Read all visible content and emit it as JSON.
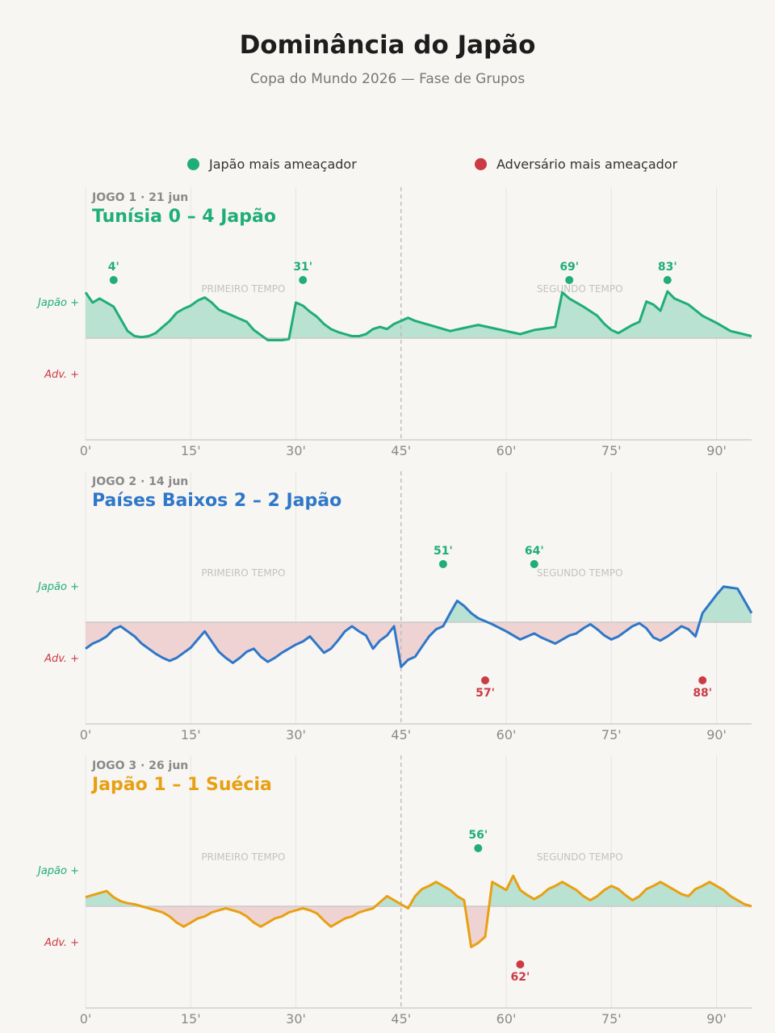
{
  "header": {
    "title": "Dominância do Japão",
    "subtitle": "Copa do Mundo 2026 — Fase de Grupos"
  },
  "legend": [
    {
      "label": "Japão mais ameaçador",
      "color": "#1fad78"
    },
    {
      "label": "Adversário mais ameaçador",
      "color": "#cc3b44"
    }
  ],
  "colors": {
    "japan": "#1fad78",
    "japan_fill": "#b9e2d2",
    "opponent": "#cc3b44",
    "opponent_fill": "#efd3d3",
    "grid": "#e7e5e0",
    "halftime_line": "#b8b8b8",
    "axis": "#cfcfcf",
    "tick": "#8a8a8a",
    "meta": "#8a8a8a",
    "period_label": "#c2c2c2"
  },
  "chart_data": [
    {
      "type": "area",
      "match_label": "JOGO 1",
      "date": "21 jun",
      "title": "Tunísia 0 – 4 Japão",
      "title_color": "#1fad78",
      "line_color": "#1fad78",
      "ylabel_top": "Japão +",
      "ylabel_bottom": "Adv. +",
      "period_labels": [
        "PRIMEIRO TEMPO",
        "SEGUNDO TEMPO"
      ],
      "xlim": [
        0,
        95
      ],
      "ylim": [
        -1,
        1
      ],
      "xticks": [
        0,
        15,
        30,
        45,
        60,
        75,
        90
      ],
      "xtick_labels": [
        "0'",
        "15'",
        "30'",
        "45'",
        "60'",
        "75'",
        "90'"
      ],
      "halftime": 45,
      "x": [
        0,
        1,
        2,
        3,
        4,
        5,
        6,
        7,
        8,
        9,
        10,
        11,
        12,
        13,
        14,
        15,
        16,
        17,
        18,
        19,
        20,
        21,
        22,
        23,
        24,
        25,
        26,
        27,
        28,
        29,
        30,
        31,
        32,
        33,
        34,
        35,
        36,
        37,
        38,
        39,
        40,
        41,
        42,
        43,
        44,
        45,
        46,
        47,
        48,
        49,
        50,
        52,
        54,
        56,
        58,
        60,
        62,
        64,
        65,
        67,
        68,
        69,
        71,
        73,
        74,
        75,
        76,
        78,
        79,
        80,
        81,
        82,
        83,
        84,
        86,
        88,
        90,
        92,
        95
      ],
      "y": [
        0.45,
        0.35,
        0.39,
        0.35,
        0.31,
        0.19,
        0.07,
        0.02,
        0.01,
        0.02,
        0.05,
        0.11,
        0.17,
        0.25,
        0.29,
        0.32,
        0.37,
        0.4,
        0.35,
        0.28,
        0.25,
        0.22,
        0.19,
        0.16,
        0.08,
        0.03,
        -0.02,
        -0.02,
        -0.02,
        -0.01,
        0.35,
        0.32,
        0.26,
        0.21,
        0.14,
        0.09,
        0.06,
        0.04,
        0.02,
        0.02,
        0.04,
        0.09,
        0.11,
        0.09,
        0.14,
        0.17,
        0.2,
        0.17,
        0.15,
        0.13,
        0.11,
        0.07,
        0.1,
        0.13,
        0.1,
        0.07,
        0.04,
        0.08,
        0.09,
        0.11,
        0.45,
        0.39,
        0.31,
        0.22,
        0.14,
        0.08,
        0.05,
        0.13,
        0.16,
        0.36,
        0.33,
        0.27,
        0.46,
        0.39,
        0.33,
        0.22,
        0.15,
        0.07,
        0.02
      ],
      "events": [
        {
          "minute": 4,
          "label": "4'",
          "side": "japan"
        },
        {
          "minute": 31,
          "label": "31'",
          "side": "japan"
        },
        {
          "minute": 69,
          "label": "69'",
          "side": "japan"
        },
        {
          "minute": 83,
          "label": "83'",
          "side": "japan"
        }
      ]
    },
    {
      "type": "area",
      "match_label": "JOGO 2",
      "date": "14 jun",
      "title": "Países Baixos 2 – 2 Japão",
      "title_color": "#2f77c8",
      "line_color": "#2f77c8",
      "ylabel_top": "Japão +",
      "ylabel_bottom": "Adv. +",
      "period_labels": [
        "PRIMEIRO TEMPO",
        "SEGUNDO TEMPO"
      ],
      "xlim": [
        0,
        95
      ],
      "ylim": [
        -1,
        1
      ],
      "xticks": [
        0,
        15,
        30,
        45,
        60,
        75,
        90
      ],
      "xtick_labels": [
        "0'",
        "15'",
        "30'",
        "45'",
        "60'",
        "75'",
        "90'"
      ],
      "halftime": 45,
      "x": [
        0,
        1,
        2,
        3,
        4,
        5,
        6,
        7,
        8,
        9,
        10,
        11,
        12,
        13,
        14,
        15,
        16,
        17,
        18,
        19,
        20,
        21,
        22,
        23,
        24,
        25,
        26,
        27,
        28,
        29,
        30,
        31,
        32,
        33,
        34,
        35,
        36,
        37,
        38,
        39,
        40,
        41,
        42,
        43,
        44,
        45,
        46,
        47,
        48,
        49,
        50,
        51,
        52,
        53,
        54,
        55,
        56,
        57,
        58,
        60,
        62,
        64,
        65,
        67,
        69,
        70,
        71,
        72,
        73,
        74,
        75,
        76,
        77,
        78,
        79,
        80,
        81,
        82,
        83,
        84,
        85,
        86,
        87,
        88,
        89,
        90,
        91,
        93,
        94,
        95
      ],
      "y": [
        -0.26,
        -0.21,
        -0.18,
        -0.14,
        -0.07,
        -0.04,
        -0.09,
        -0.14,
        -0.21,
        -0.26,
        -0.31,
        -0.35,
        -0.38,
        -0.35,
        -0.3,
        -0.25,
        -0.17,
        -0.09,
        -0.19,
        -0.29,
        -0.35,
        -0.4,
        -0.35,
        -0.29,
        -0.26,
        -0.34,
        -0.39,
        -0.35,
        -0.3,
        -0.26,
        -0.22,
        -0.19,
        -0.14,
        -0.22,
        -0.3,
        -0.26,
        -0.18,
        -0.09,
        -0.04,
        -0.09,
        -0.13,
        -0.26,
        -0.18,
        -0.13,
        -0.04,
        -0.44,
        -0.37,
        -0.34,
        -0.24,
        -0.14,
        -0.07,
        -0.04,
        0.09,
        0.21,
        0.16,
        0.09,
        0.04,
        0.01,
        -0.02,
        -0.09,
        -0.17,
        -0.11,
        -0.15,
        -0.21,
        -0.13,
        -0.11,
        -0.06,
        -0.02,
        -0.07,
        -0.13,
        -0.17,
        -0.14,
        -0.09,
        -0.04,
        -0.01,
        -0.06,
        -0.15,
        -0.18,
        -0.14,
        -0.09,
        -0.04,
        -0.07,
        -0.14,
        0.09,
        0.18,
        0.27,
        0.35,
        0.33,
        0.21,
        0.09
      ],
      "events": [
        {
          "minute": 51,
          "label": "51'",
          "side": "japan"
        },
        {
          "minute": 64,
          "label": "64'",
          "side": "japan"
        },
        {
          "minute": 57,
          "label": "57'",
          "side": "opponent"
        },
        {
          "minute": 88,
          "label": "88'",
          "side": "opponent"
        }
      ]
    },
    {
      "type": "area",
      "match_label": "JOGO 3",
      "date": "26 jun",
      "title": "Japão 1 – 1 Suécia",
      "title_color": "#e8a012",
      "line_color": "#e8a012",
      "ylabel_top": "Japão +",
      "ylabel_bottom": "Adv. +",
      "period_labels": [
        "PRIMEIRO TEMPO",
        "SEGUNDO TEMPO"
      ],
      "xlim": [
        0,
        95
      ],
      "ylim": [
        -1,
        1
      ],
      "xticks": [
        0,
        15,
        30,
        45,
        60,
        75,
        90
      ],
      "xtick_labels": [
        "0'",
        "15'",
        "30'",
        "45'",
        "60'",
        "75'",
        "90'"
      ],
      "halftime": 45,
      "x": [
        0,
        1,
        2,
        3,
        4,
        5,
        6,
        7,
        8,
        9,
        10,
        11,
        12,
        13,
        14,
        15,
        16,
        17,
        18,
        19,
        20,
        21,
        22,
        23,
        24,
        25,
        26,
        27,
        28,
        29,
        30,
        31,
        32,
        33,
        34,
        35,
        36,
        37,
        38,
        39,
        40,
        41,
        42,
        43,
        44,
        45,
        46,
        47,
        48,
        49,
        50,
        51,
        52,
        53,
        54,
        55,
        56,
        57,
        58,
        59,
        60,
        61,
        62,
        63,
        64,
        65,
        66,
        67,
        68,
        69,
        70,
        71,
        72,
        73,
        74,
        75,
        76,
        77,
        78,
        79,
        80,
        81,
        82,
        83,
        84,
        85,
        86,
        87,
        88,
        89,
        90,
        91,
        92,
        93,
        94,
        95
      ],
      "y": [
        0.09,
        0.11,
        0.13,
        0.15,
        0.09,
        0.05,
        0.03,
        0.02,
        0.0,
        -0.02,
        -0.04,
        -0.06,
        -0.1,
        -0.16,
        -0.2,
        -0.16,
        -0.12,
        -0.1,
        -0.06,
        -0.04,
        -0.02,
        -0.04,
        -0.06,
        -0.1,
        -0.16,
        -0.2,
        -0.16,
        -0.12,
        -0.1,
        -0.06,
        -0.04,
        -0.02,
        -0.04,
        -0.07,
        -0.14,
        -0.2,
        -0.16,
        -0.12,
        -0.1,
        -0.06,
        -0.04,
        -0.02,
        0.04,
        0.1,
        0.06,
        0.02,
        -0.02,
        0.1,
        0.17,
        0.2,
        0.24,
        0.2,
        0.16,
        0.1,
        0.06,
        -0.4,
        -0.36,
        -0.3,
        0.24,
        0.2,
        0.16,
        0.3,
        0.16,
        0.11,
        0.07,
        0.11,
        0.17,
        0.2,
        0.24,
        0.2,
        0.16,
        0.1,
        0.06,
        0.1,
        0.16,
        0.2,
        0.17,
        0.11,
        0.06,
        0.1,
        0.17,
        0.2,
        0.24,
        0.2,
        0.16,
        0.12,
        0.1,
        0.17,
        0.2,
        0.24,
        0.2,
        0.16,
        0.1,
        0.06,
        0.02,
        0.0
      ],
      "events": [
        {
          "minute": 56,
          "label": "56'",
          "side": "japan"
        },
        {
          "minute": 62,
          "label": "62'",
          "side": "opponent"
        }
      ]
    }
  ]
}
